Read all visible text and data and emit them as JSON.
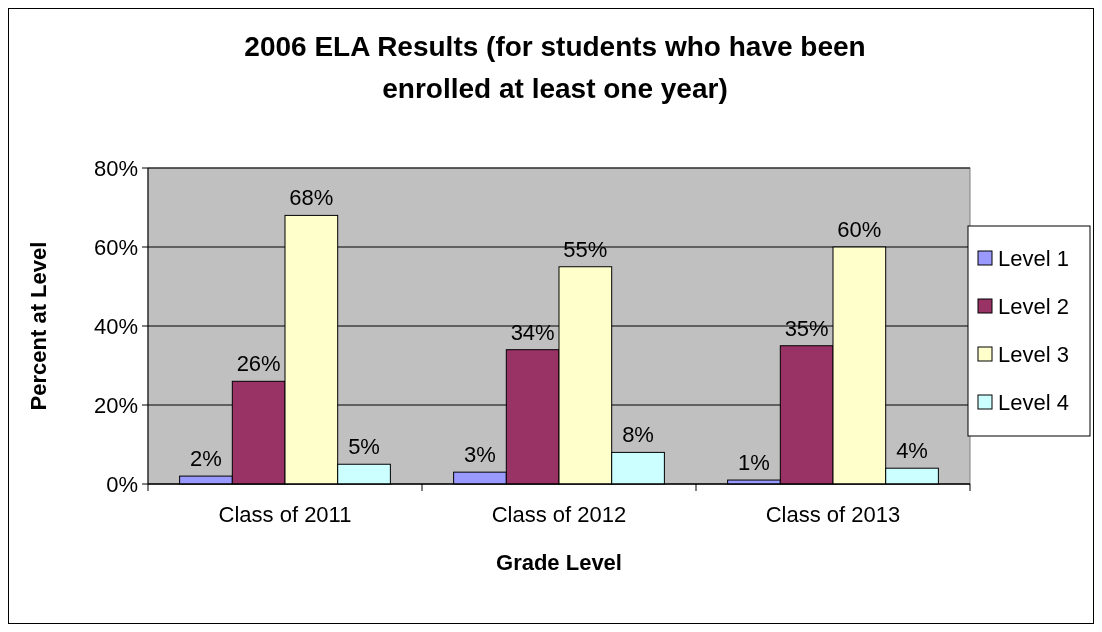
{
  "chart_data": {
    "type": "bar",
    "title": "2006 ELA Results (for students who have been enrolled at least one year)",
    "xlabel": "Grade Level",
    "ylabel": "Percent at Level",
    "categories": [
      "Class of 2011",
      "Class of 2012",
      "Class of 2013"
    ],
    "series": [
      {
        "name": "Level 1",
        "color": "#9999ff",
        "values": [
          2,
          3,
          1
        ],
        "value_labels": [
          "2%",
          "3%",
          "1%"
        ]
      },
      {
        "name": "Level 2",
        "color": "#993366",
        "values": [
          26,
          34,
          35
        ],
        "value_labels": [
          "26%",
          "34%",
          "35%"
        ]
      },
      {
        "name": "Level 3",
        "color": "#ffffcc",
        "values": [
          68,
          55,
          60
        ],
        "value_labels": [
          "68%",
          "55%",
          "60%"
        ]
      },
      {
        "name": "Level 4",
        "color": "#ccffff",
        "values": [
          5,
          8,
          4
        ],
        "value_labels": [
          "5%",
          "8%",
          "4%"
        ]
      }
    ],
    "ylim": [
      0,
      80
    ],
    "yticks": [
      {
        "value": 0,
        "label": "0%"
      },
      {
        "value": 20,
        "label": "20%"
      },
      {
        "value": 40,
        "label": "40%"
      },
      {
        "value": 60,
        "label": "60%"
      },
      {
        "value": 80,
        "label": "80%"
      }
    ],
    "grid": "y",
    "legend": "right"
  }
}
